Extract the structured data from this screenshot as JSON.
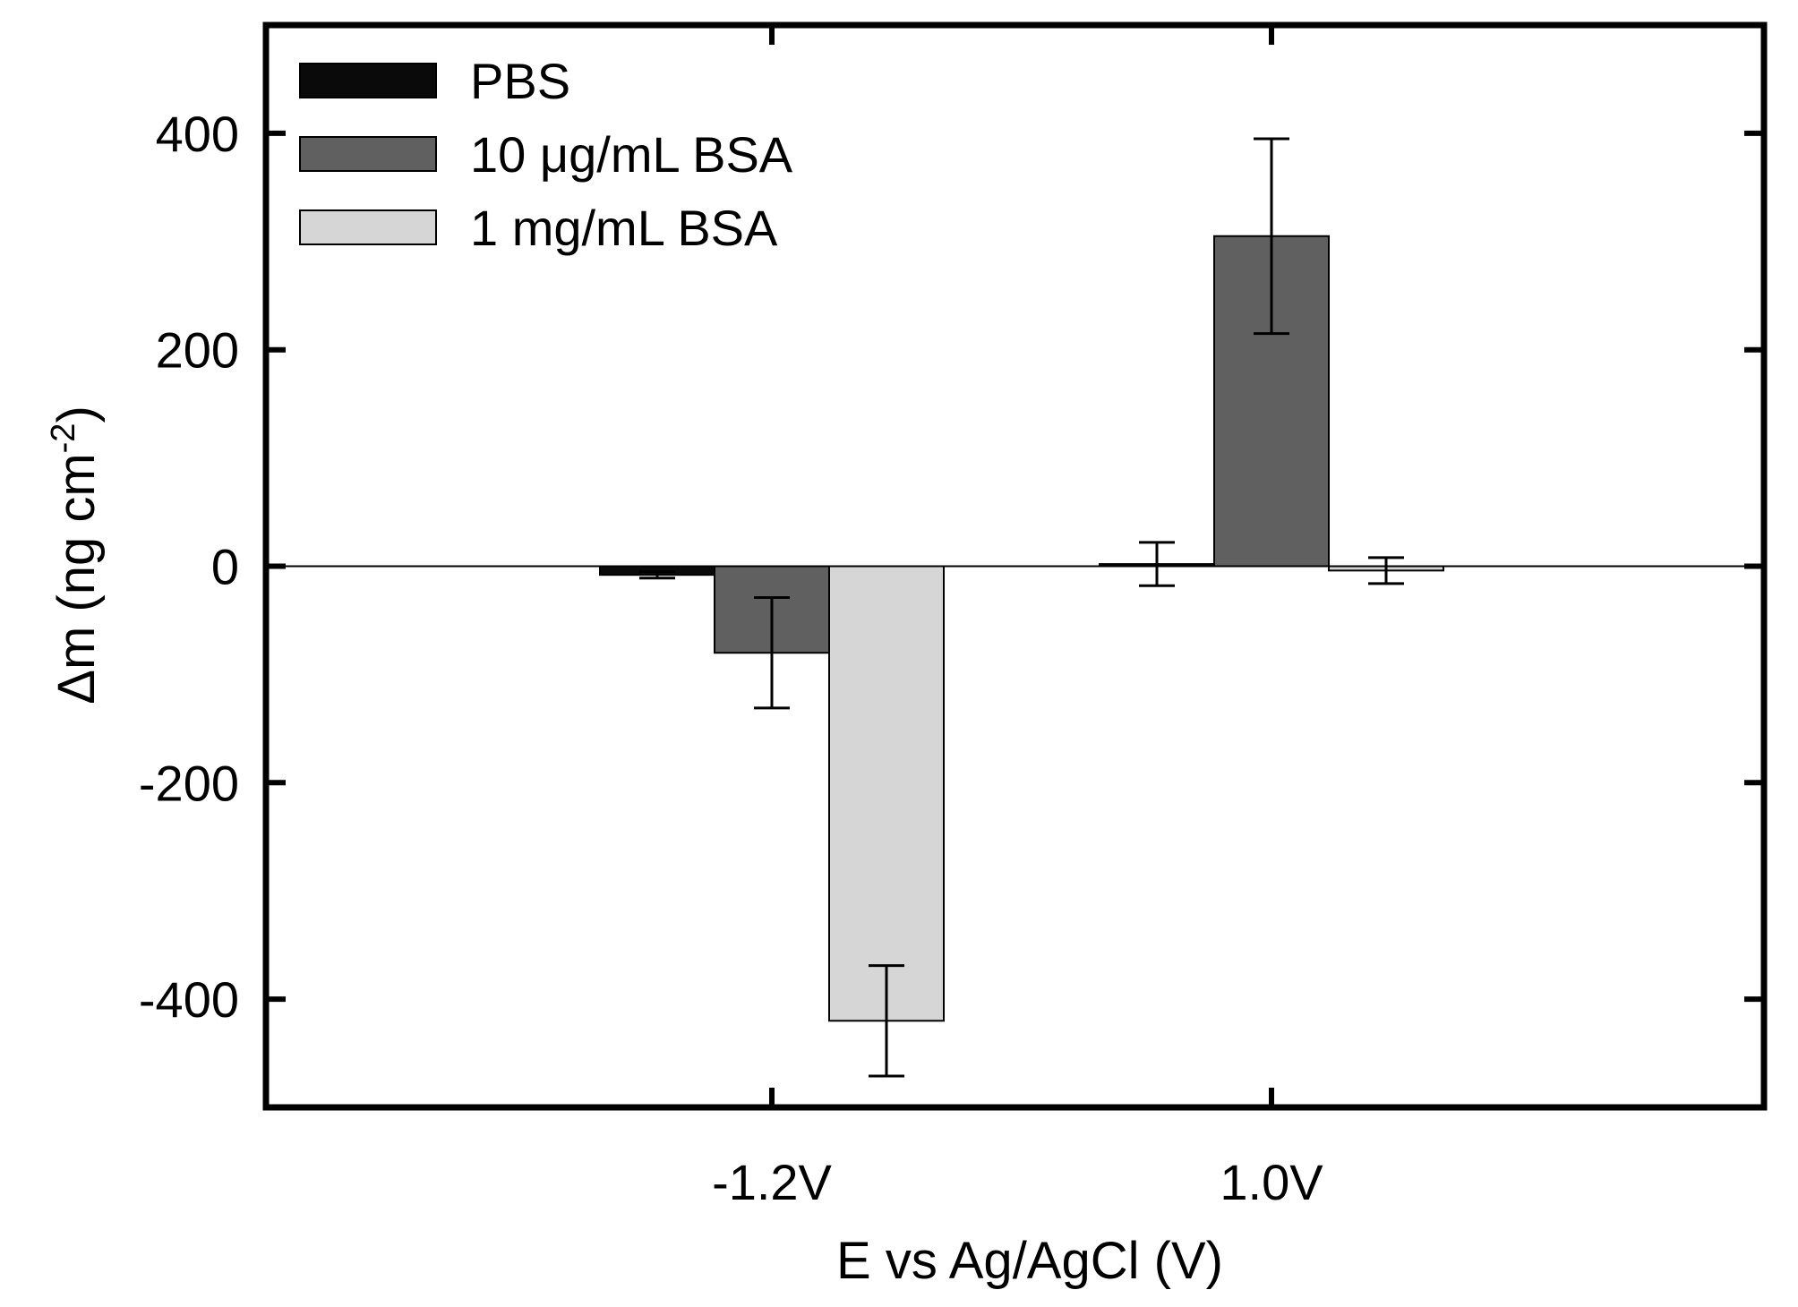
{
  "chart_data": {
    "type": "bar",
    "title": "",
    "xlabel": "E vs Ag/AgCl (V)",
    "ylabel_main": "Δm (ng cm",
    "ylabel_sup": "-2",
    "ylabel_close": ")",
    "ylim": [
      -500,
      500
    ],
    "yticks": [
      -400,
      -200,
      0,
      200,
      400
    ],
    "ytick_labels": [
      "-400",
      "-200",
      "0",
      "200",
      "400"
    ],
    "categories": [
      "-1.2V",
      "1.0V"
    ],
    "series": [
      {
        "name": "PBS",
        "color": "#0a0a0a",
        "values": [
          -8,
          2
        ],
        "errors": [
          3,
          20
        ]
      },
      {
        "name": "10 μg/mL BSA",
        "color": "#606060",
        "values": [
          -80,
          305
        ],
        "errors": [
          51,
          90
        ]
      },
      {
        "name": "1 mg/mL BSA",
        "color": "#d6d6d6",
        "values": [
          -420,
          -4
        ],
        "errors": [
          51,
          12
        ]
      }
    ],
    "legend_position": "top-left",
    "grid": false
  }
}
